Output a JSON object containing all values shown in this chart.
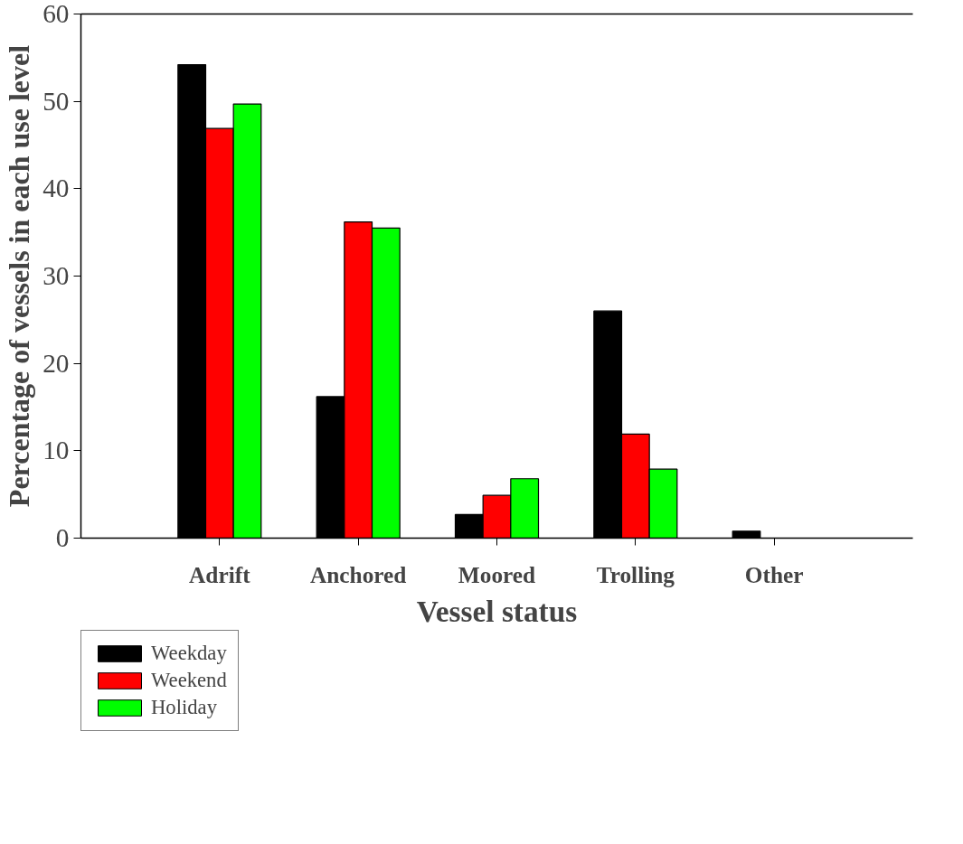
{
  "chart_data": {
    "type": "bar",
    "xlabel": "Vessel status",
    "ylabel": "Percentage of vessels in each use level",
    "categories": [
      "Adrift",
      "Anchored",
      "Moored",
      "Trolling",
      "Other"
    ],
    "series": [
      {
        "name": "Weekday",
        "color": "#000000",
        "values": [
          54.2,
          16.2,
          2.7,
          26.0,
          0.8
        ]
      },
      {
        "name": "Weekend",
        "color": "#ff0000",
        "values": [
          46.9,
          36.2,
          4.9,
          11.9,
          0
        ]
      },
      {
        "name": "Holiday",
        "color": "#00ff00",
        "values": [
          49.7,
          35.5,
          6.8,
          7.9,
          0
        ]
      }
    ],
    "ylim": [
      0,
      60
    ],
    "yticks": [
      0,
      10,
      20,
      30,
      40,
      50,
      60
    ],
    "grid": false,
    "legend": "bottom left"
  }
}
